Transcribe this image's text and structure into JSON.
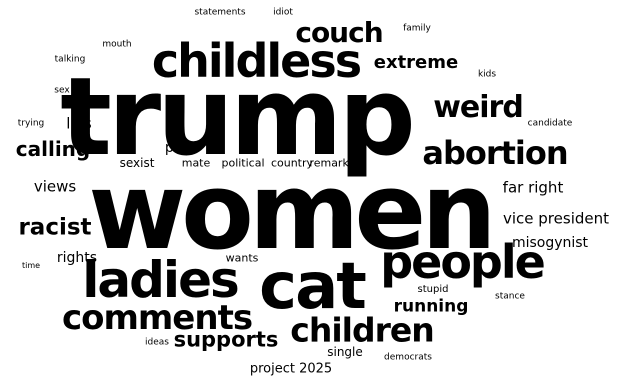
{
  "text_color": "#000000",
  "background_color": "#ffffff",
  "words": [
    "trump",
    "women",
    "cat",
    "childless",
    "ladies",
    "people",
    "abortion",
    "comments",
    "children",
    "weird",
    "couch",
    "racist",
    "calling",
    "supports",
    "extreme",
    "running",
    "far right",
    "vice president",
    "misogynist",
    "views",
    "lies",
    "past",
    "sexist",
    "mate",
    "political",
    "country",
    "remarks",
    "rights",
    "wants",
    "project 2025",
    "single",
    "stupid",
    "statements",
    "idiot",
    "family",
    "mouth",
    "talking",
    "kids",
    "sex",
    "trying",
    "candidate",
    "time",
    "stance",
    "ideas",
    "democrats"
  ]
}
